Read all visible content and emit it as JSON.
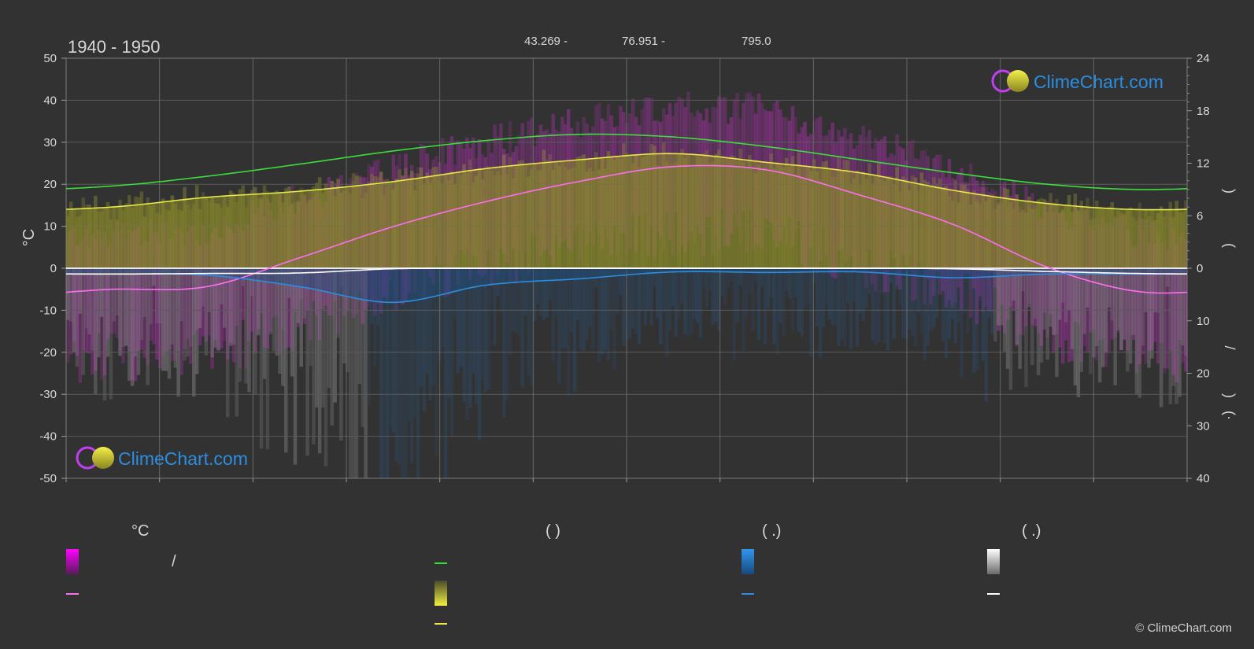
{
  "header": {
    "period": "1940 - 1950",
    "lat": "43.269 -",
    "lon": "76.951 -",
    "elevation": "795.0"
  },
  "axis": {
    "left_unit": "°C",
    "right_labels": [
      ")",
      "(",
      "/",
      ")",
      "(·"
    ]
  },
  "watermark": "ClimeChart.com",
  "copyright": "© ClimeChart.com",
  "legend": {
    "col1_head": "°C",
    "col1_item1": "/",
    "col2_head": "(           )",
    "col3_head": "(   .)",
    "col4_head": "(   .)"
  },
  "colors": {
    "background": "#323232",
    "daylight": "#3ddc3d",
    "sunshine": "#e8e84a",
    "mean_temp": "#ff6ef0",
    "rain": "#2b8ee0",
    "snow": "#ffffff",
    "brand": "#2b8ee0"
  },
  "chart_data": {
    "type": "area",
    "x": [
      0.5,
      1.5,
      2.5,
      3.5,
      4.5,
      5.5,
      6.5,
      7.5,
      8.5,
      9.5,
      10.5,
      11.5
    ],
    "xlim": [
      0,
      12
    ],
    "ylim_left": [
      -50,
      50
    ],
    "ylim_right_hours": [
      0,
      24
    ],
    "ylim_right_precip": [
      0,
      40
    ],
    "yticks_left": [
      50,
      40,
      30,
      20,
      10,
      0,
      -10,
      -20,
      -30,
      -40,
      -50
    ],
    "yticks_right_top": [
      24,
      18,
      12,
      6,
      0
    ],
    "yticks_right_bottom": [
      10,
      20,
      30,
      40
    ],
    "grid": true,
    "series": [
      {
        "key": "daylight",
        "values": [
          9.4,
          10.5,
          11.9,
          13.4,
          14.6,
          15.3,
          15.0,
          13.9,
          12.4,
          10.9,
          9.6,
          9.0
        ]
      },
      {
        "key": "sunshine",
        "values": [
          7.0,
          8.1,
          8.8,
          9.9,
          11.4,
          12.4,
          13.1,
          12.1,
          10.9,
          8.9,
          7.4,
          6.7
        ]
      },
      {
        "key": "mean_temp",
        "values": [
          -5.0,
          -4.4,
          2.5,
          9.9,
          15.9,
          20.7,
          24.2,
          23.4,
          17.4,
          10.4,
          0.3,
          -5.6
        ]
      },
      {
        "key": "rain_mm",
        "values": [
          1.1,
          1.3,
          3.5,
          6.5,
          3.2,
          2.0,
          0.7,
          0.8,
          0.7,
          1.8,
          1.1,
          1.1
        ]
      },
      {
        "key": "snow_mm",
        "values": [
          1.1,
          1.0,
          0.9,
          0.1,
          0.0,
          0.0,
          0.0,
          0.0,
          0.0,
          0.1,
          0.6,
          1.0
        ]
      }
    ]
  }
}
